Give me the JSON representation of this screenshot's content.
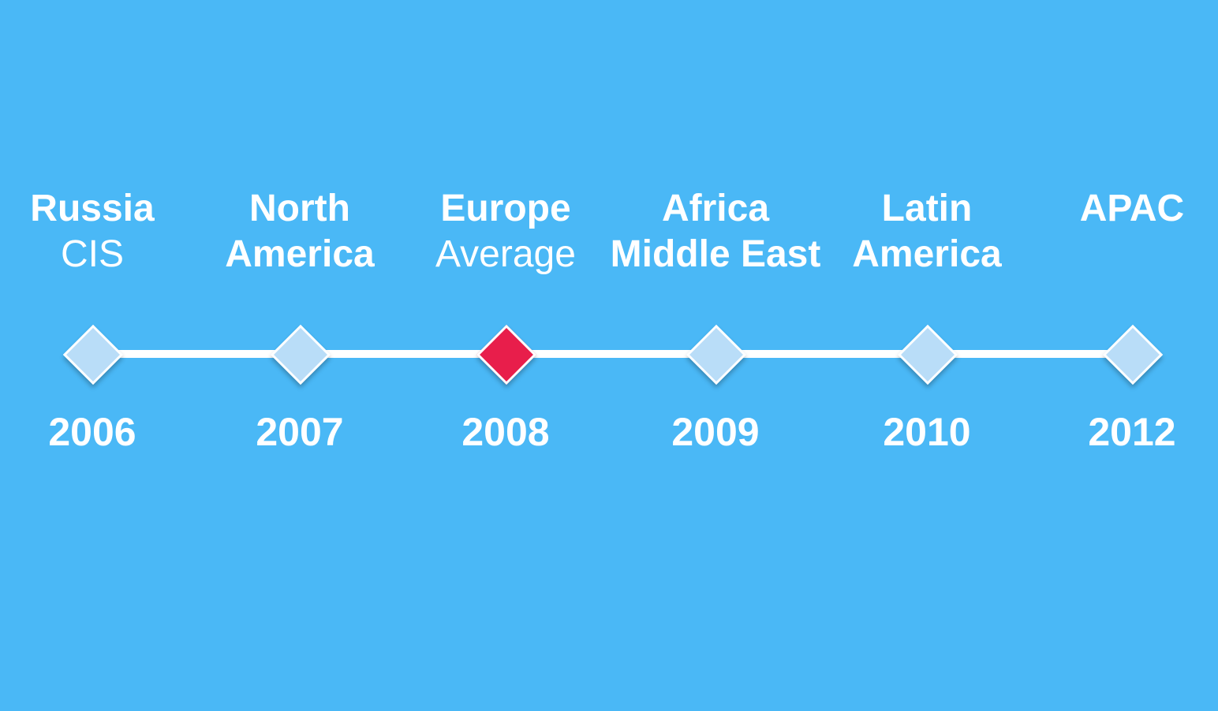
{
  "colors": {
    "background": "#4AB8F6",
    "marker": "#B9DDF8",
    "active_marker": "#E81E4B",
    "line": "#FFFFFF"
  },
  "items": [
    {
      "line1": "Russia",
      "line2": "CIS",
      "line2_bold": false,
      "year": "2006",
      "active": false
    },
    {
      "line1": "North",
      "line2": "America",
      "line2_bold": true,
      "year": "2007",
      "active": false
    },
    {
      "line1": "Europe",
      "line2": "Average",
      "line2_bold": false,
      "year": "2008",
      "active": true
    },
    {
      "line1": "Africa",
      "line2": "Middle East",
      "line2_bold": true,
      "year": "2009",
      "active": false
    },
    {
      "line1": "Latin",
      "line2": "America",
      "line2_bold": true,
      "year": "2010",
      "active": false
    },
    {
      "line1": "APAC",
      "line2": "",
      "line2_bold": true,
      "year": "2012",
      "active": false
    }
  ]
}
